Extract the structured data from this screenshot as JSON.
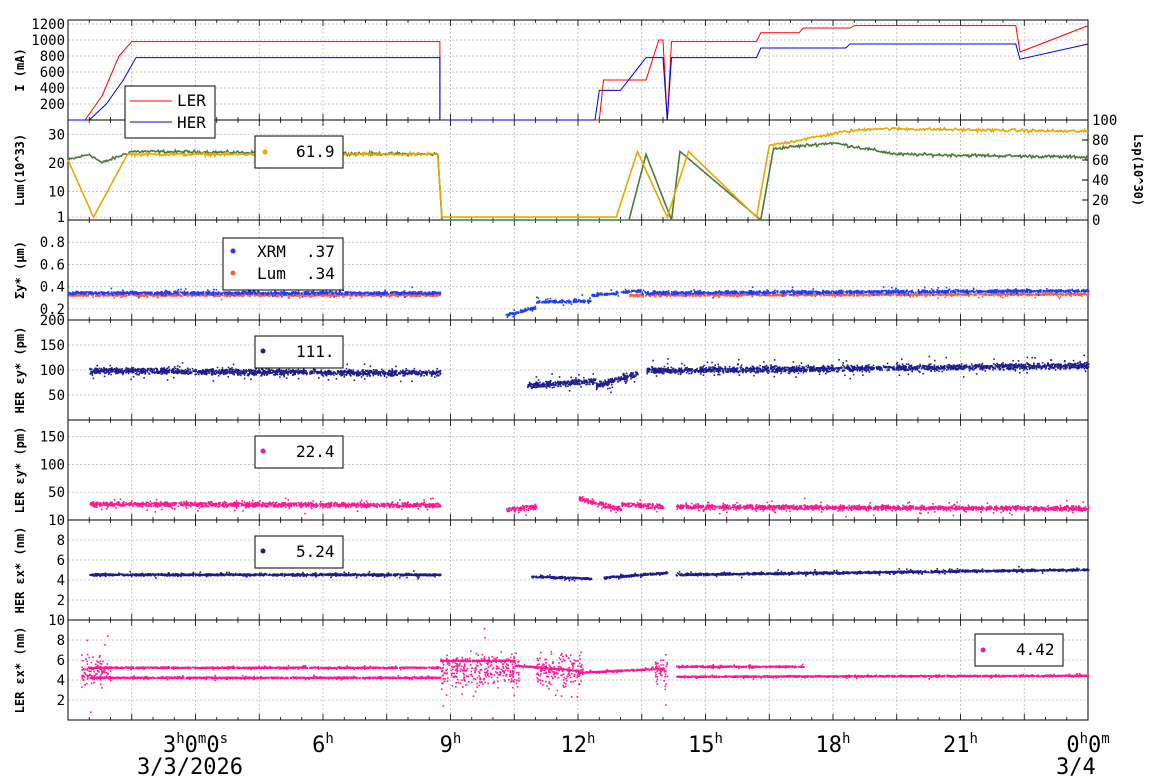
{
  "colors": {
    "ler": "#ff0000",
    "her": "#0000dd",
    "lum_green": "#4a7a3a",
    "lum_orange": "#e8a800",
    "xrm": "#1a3cff",
    "lum_pt": "#ff5a3c",
    "her_navy": "#1c1c8c",
    "pink": "#ff1493"
  },
  "x_axis": {
    "ticks": [
      {
        "h": 3,
        "label": "3",
        "sup": "h",
        "rest": "0",
        "sup2": "m",
        "rest2": "0",
        "sup3": "s"
      },
      {
        "h": 6,
        "label": "6",
        "sup": "h"
      },
      {
        "h": 9,
        "label": "9",
        "sup": "h"
      },
      {
        "h": 12,
        "label": "12",
        "sup": "h"
      },
      {
        "h": 15,
        "label": "15",
        "sup": "h"
      },
      {
        "h": 18,
        "label": "18",
        "sup": "h"
      },
      {
        "h": 21,
        "label": "21",
        "sup": "h"
      },
      {
        "h": 24,
        "label": "0",
        "sup": "h",
        "rest": "0",
        "sup2": "m"
      }
    ],
    "date_left": "3/3/2026",
    "date_right": "3/4",
    "range_hours": [
      0,
      24
    ]
  },
  "chart_data": [
    {
      "type": "line",
      "id": "current",
      "ylabel": "I (mA)",
      "ylim": [
        0,
        1250
      ],
      "yticks": [
        200,
        400,
        600,
        800,
        1000,
        1200
      ],
      "legend": [
        {
          "name": "LER",
          "color": "#ff0000"
        },
        {
          "name": "HER",
          "color": "#0000dd"
        }
      ],
      "series": [
        {
          "name": "LER",
          "x": [
            0,
            0.4,
            0.8,
            1.2,
            1.5,
            8.75,
            8.75,
            10.5,
            12.5,
            12.6,
            13.6,
            13.9,
            14.0,
            14.1,
            14.2,
            16.2,
            16.3,
            17.2,
            17.3,
            18.4,
            18.5,
            22.3,
            22.4,
            24
          ],
          "y": [
            0,
            0,
            300,
            800,
            980,
            980,
            0,
            0,
            0,
            500,
            500,
            1000,
            1000,
            0,
            980,
            980,
            1090,
            1090,
            1150,
            1150,
            1180,
            1180,
            850,
            1180
          ]
        },
        {
          "name": "HER",
          "x": [
            0,
            0.5,
            0.9,
            1.3,
            1.6,
            8.75,
            8.75,
            12.4,
            12.5,
            13.0,
            13.6,
            13.9,
            14.0,
            14.1,
            14.2,
            16.2,
            16.3,
            18.3,
            18.4,
            22.3,
            22.4,
            24
          ],
          "y": [
            0,
            0,
            200,
            500,
            780,
            780,
            0,
            0,
            370,
            370,
            780,
            780,
            780,
            0,
            780,
            780,
            900,
            900,
            950,
            950,
            760,
            950
          ]
        }
      ]
    },
    {
      "type": "line",
      "id": "luminosity",
      "ylabel": "Lum(10^33)",
      "ylabel_right": "Lsp(10^30)",
      "ylim": [
        0,
        35
      ],
      "yticks": [
        1,
        10,
        20,
        30
      ],
      "yticks_right": [
        0,
        20,
        40,
        60,
        80,
        100
      ],
      "legend_value": "61.9",
      "series": [
        {
          "name": "green",
          "x": [
            0,
            0.5,
            0.8,
            1.5,
            8.7,
            8.8,
            13.2,
            13.6,
            14.2,
            14.4,
            16.3,
            16.6,
            18,
            19.5,
            24
          ],
          "y": [
            21,
            23,
            20,
            24,
            23,
            0,
            0,
            23,
            0,
            24,
            0,
            25,
            27,
            23,
            22
          ]
        },
        {
          "name": "orange",
          "x": [
            0,
            0.6,
            1.4,
            8.7,
            8.8,
            12.9,
            13.4,
            14.1,
            14.6,
            16.2,
            16.5,
            18.3,
            19,
            24
          ],
          "y": [
            21,
            1,
            23,
            23,
            1,
            1,
            24,
            1,
            24,
            1,
            26,
            31,
            32,
            31
          ]
        }
      ]
    },
    {
      "type": "scatter",
      "id": "sigma_y",
      "ylabel": "Σy* (μm)",
      "ylim": [
        0.1,
        1.0
      ],
      "yticks": [
        0.2,
        0.4,
        0.6,
        0.8
      ],
      "legend": [
        {
          "name": "XRM",
          "value": ".37"
        },
        {
          "name": "Lum",
          "value": ".34"
        }
      ]
    },
    {
      "type": "scatter",
      "id": "her_ey",
      "ylabel": "HER εy* (pm)",
      "ylim": [
        0,
        200
      ],
      "yticks": [
        50,
        100,
        150,
        200
      ],
      "legend_value": "111."
    },
    {
      "type": "scatter",
      "id": "ler_ey",
      "ylabel": "LER εy* (pm)",
      "ylim": [
        0,
        180
      ],
      "yticks": [
        50,
        100,
        150
      ],
      "legend_value": "22.4"
    },
    {
      "type": "scatter",
      "id": "her_ex",
      "ylabel": "HER εx* (nm)",
      "ylim": [
        0,
        10
      ],
      "yticks": [
        2,
        4,
        6,
        8,
        10
      ],
      "legend_value": "5.24"
    },
    {
      "type": "scatter",
      "id": "ler_ex",
      "ylabel": "LER εx* (nm)",
      "ylim": [
        0,
        10
      ],
      "yticks": [
        2,
        4,
        6,
        8,
        10
      ],
      "legend_value": "4.42"
    }
  ]
}
